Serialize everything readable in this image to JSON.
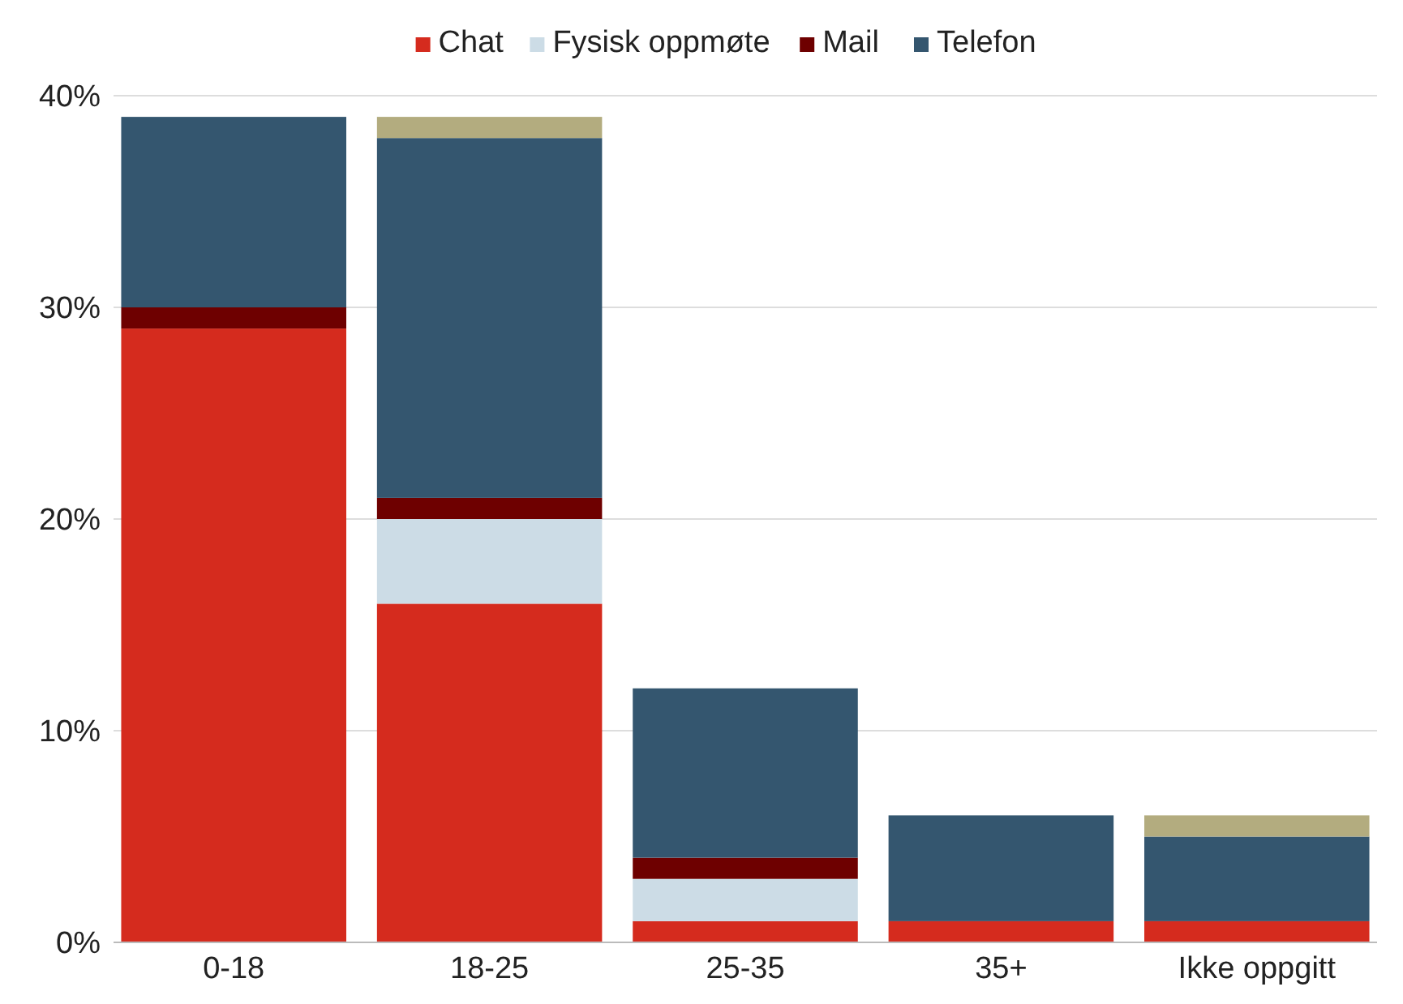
{
  "chart_data": {
    "type": "bar",
    "stacked": true,
    "categories": [
      "0-18",
      "18-25",
      "25-35",
      "35+",
      "Ikke oppgitt"
    ],
    "series": [
      {
        "name": "Chat",
        "color": "#d52b1e",
        "values": [
          29,
          16,
          1,
          1,
          1
        ]
      },
      {
        "name": "Fysisk oppmøte",
        "color": "#ccdce6",
        "values": [
          0,
          4,
          2,
          0,
          0
        ]
      },
      {
        "name": "Mail",
        "color": "#6e0000",
        "values": [
          1,
          1,
          1,
          0,
          0
        ]
      },
      {
        "name": "Telefon",
        "color": "#34566f",
        "values": [
          9,
          17,
          8,
          5,
          4
        ]
      },
      {
        "color": "#b3ac7f",
        "values": [
          0,
          1,
          0,
          0,
          1
        ]
      }
    ],
    "ylim": [
      0,
      40
    ],
    "yticks": [
      {
        "value": 0,
        "label": "0%"
      },
      {
        "value": 10,
        "label": "10%"
      },
      {
        "value": 20,
        "label": "20%"
      },
      {
        "value": 30,
        "label": "30%"
      },
      {
        "value": 40,
        "label": "40%"
      }
    ],
    "grid": "y",
    "legend": "top"
  }
}
